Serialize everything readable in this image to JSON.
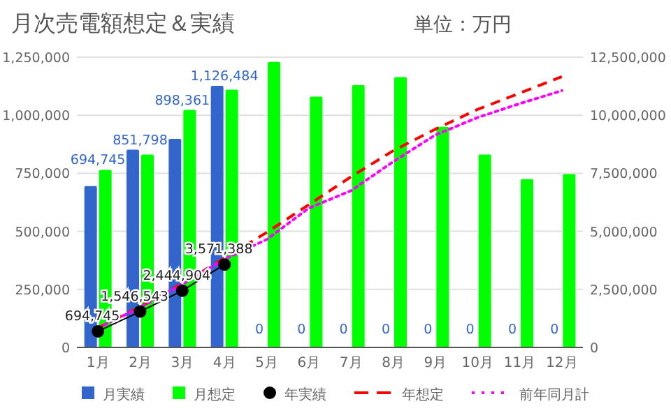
{
  "chart_data": {
    "type": "bar",
    "title": "月次売電額想定＆実績",
    "annotations": [
      "単位：万円"
    ],
    "categories": [
      "1月",
      "2月",
      "3月",
      "4月",
      "5月",
      "6月",
      "7月",
      "8月",
      "9月",
      "10月",
      "11月",
      "12月"
    ],
    "series": [
      {
        "name": "月実績",
        "color": "#3366cc",
        "values": [
          694745,
          851798,
          898361,
          1126484,
          0,
          0,
          0,
          0,
          0,
          0,
          0,
          0
        ],
        "value_labels": [
          "694,745",
          "851,798",
          "898,361",
          "1,126,484",
          "0",
          "0",
          "0",
          "0",
          "0",
          "0",
          "0",
          "0"
        ]
      },
      {
        "name": "月想定",
        "color": "#00ff00",
        "values": [
          765000,
          831000,
          1023000,
          1110000,
          1230000,
          1080000,
          1130000,
          1164000,
          950000,
          831000,
          725000,
          747000
        ]
      },
      {
        "name": "年実績",
        "type": "line",
        "axis": "y2",
        "color": "#000000",
        "marker": "circle",
        "values": [
          694745,
          1546543,
          2444904,
          3571388,
          null,
          null,
          null,
          null,
          null,
          null,
          null,
          null
        ],
        "value_labels": [
          "694,745",
          "1,546,543",
          "2,444,904",
          "3,571,388",
          null,
          null,
          null,
          null,
          null,
          null,
          null,
          null
        ]
      },
      {
        "name": "年想定",
        "type": "line",
        "axis": "y2",
        "color": "#ff0000",
        "line_style": "dashed",
        "marker": "none",
        "values": [
          840000,
          1750000,
          2750000,
          3850000,
          4950000,
          6150000,
          7350000,
          8470000,
          9400000,
          10250000,
          10950000,
          11660000
        ]
      },
      {
        "name": "前年同月計",
        "type": "line",
        "axis": "y2",
        "color": "#ff00ff",
        "line_style": "dotted",
        "marker": "none",
        "values": [
          840000,
          1720000,
          2720000,
          3800000,
          4650000,
          6000000,
          6750000,
          8000000,
          9150000,
          9900000,
          10500000,
          11060000
        ]
      }
    ],
    "ylim": [
      0,
      1250000
    ],
    "yticks": [
      {
        "value": 0,
        "label": "0"
      },
      {
        "value": 250000,
        "label": "250,000"
      },
      {
        "value": 500000,
        "label": "500,000"
      },
      {
        "value": 750000,
        "label": "750,000"
      },
      {
        "value": 1000000,
        "label": "1,000,000"
      },
      {
        "value": 1250000,
        "label": "1,250,000"
      }
    ],
    "y2lim": [
      0,
      12500000
    ],
    "y2ticks": [
      {
        "value": 0,
        "label": "0"
      },
      {
        "value": 2500000,
        "label": "2,500,000"
      },
      {
        "value": 5000000,
        "label": "5,000,000"
      },
      {
        "value": 7500000,
        "label": "7,500,000"
      },
      {
        "value": 10000000,
        "label": "10,000,000"
      },
      {
        "value": 12500000,
        "label": "12,500,000"
      }
    ],
    "grid": "y",
    "legend": "bottom"
  }
}
